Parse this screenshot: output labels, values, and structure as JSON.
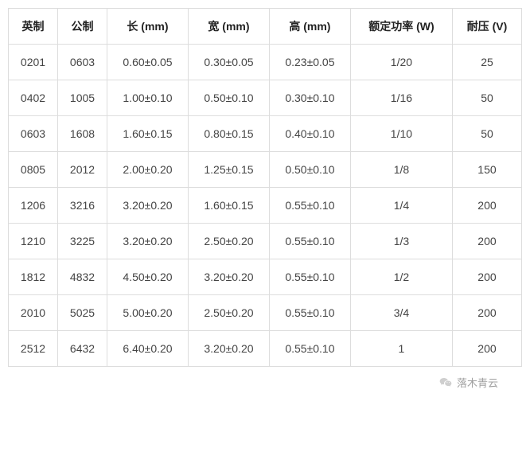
{
  "table": {
    "columns": [
      {
        "label": "英制",
        "width": 52
      },
      {
        "label": "公制",
        "width": 52
      },
      {
        "label": "长 (mm)",
        "width": 96
      },
      {
        "label": "宽 (mm)",
        "width": 96
      },
      {
        "label": "高 (mm)",
        "width": 96
      },
      {
        "label": "额定功率 (W)",
        "width": 110
      },
      {
        "label": "耐压 (V)",
        "width": 80
      }
    ],
    "rows": [
      [
        "0201",
        "0603",
        "0.60±0.05",
        "0.30±0.05",
        "0.23±0.05",
        "1/20",
        "25"
      ],
      [
        "0402",
        "1005",
        "1.00±0.10",
        "0.50±0.10",
        "0.30±0.10",
        "1/16",
        "50"
      ],
      [
        "0603",
        "1608",
        "1.60±0.15",
        "0.80±0.15",
        "0.40±0.10",
        "1/10",
        "50"
      ],
      [
        "0805",
        "2012",
        "2.00±0.20",
        "1.25±0.15",
        "0.50±0.10",
        "1/8",
        "150"
      ],
      [
        "1206",
        "3216",
        "3.20±0.20",
        "1.60±0.15",
        "0.55±0.10",
        "1/4",
        "200"
      ],
      [
        "1210",
        "3225",
        "3.20±0.20",
        "2.50±0.20",
        "0.55±0.10",
        "1/3",
        "200"
      ],
      [
        "1812",
        "4832",
        "4.50±0.20",
        "3.20±0.20",
        "0.55±0.10",
        "1/2",
        "200"
      ],
      [
        "2010",
        "5025",
        "5.00±0.20",
        "2.50±0.20",
        "0.55±0.10",
        "3/4",
        "200"
      ],
      [
        "2512",
        "6432",
        "6.40±0.20",
        "3.20±0.20",
        "0.55±0.10",
        "1",
        "200"
      ]
    ],
    "border_color": "#dddddd",
    "header_text_color": "#222222",
    "cell_text_color": "#444444",
    "font_size_header": 14,
    "font_size_cell": 14,
    "cell_padding_v": 14,
    "cell_padding_h": 8
  },
  "footer": {
    "icon_glyph": "wechat-icon",
    "text": "落木青云",
    "text_color": "#a0a0a0",
    "font_size": 13
  }
}
